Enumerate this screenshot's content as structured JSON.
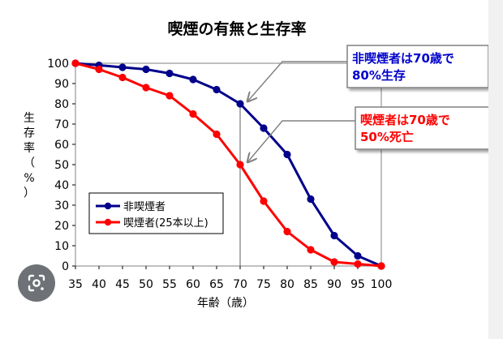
{
  "chart_data": {
    "type": "line",
    "title": "喫煙の有無と生存率",
    "xlabel": "年齢（歳）",
    "ylabel": "生存率（%）",
    "xlim": [
      35,
      100
    ],
    "ylim": [
      0,
      100
    ],
    "x_ticks": [
      "35",
      "40",
      "45",
      "50",
      "55",
      "60",
      "65",
      "70",
      "75",
      "80",
      "85",
      "90",
      "95",
      "100"
    ],
    "y_ticks": [
      "0",
      "10",
      "20",
      "30",
      "40",
      "50",
      "60",
      "70",
      "80",
      "90",
      "100"
    ],
    "grid": false,
    "legend_position": "lower-left",
    "series": [
      {
        "name": "非喫煙者",
        "color": "#00008b",
        "x": [
          35,
          40,
          45,
          50,
          55,
          60,
          65,
          70,
          75,
          80,
          85,
          90,
          95,
          100
        ],
        "values": [
          100,
          99,
          98,
          97,
          95,
          92,
          87,
          80,
          68,
          55,
          33,
          15,
          5,
          0
        ]
      },
      {
        "name": "喫煙者(25本以上)",
        "color": "#ff0000",
        "x": [
          35,
          40,
          45,
          50,
          55,
          60,
          65,
          70,
          75,
          80,
          85,
          90,
          95,
          100
        ],
        "values": [
          100,
          97,
          93,
          88,
          84,
          75,
          65,
          50,
          32,
          17,
          8,
          2,
          1,
          0
        ]
      }
    ],
    "reference_line_x": 70,
    "annotations": [
      {
        "lines": [
          "非喫煙者は70歳で",
          "80%生存"
        ],
        "color": "#0000cc",
        "target_x": 70,
        "target_y": 80
      },
      {
        "lines": [
          "喫煙者は70歳で",
          "50%死亡"
        ],
        "color": "#ff0000",
        "target_x": 70,
        "target_y": 50
      }
    ]
  },
  "icons": {
    "lens": "google-lens-icon"
  }
}
